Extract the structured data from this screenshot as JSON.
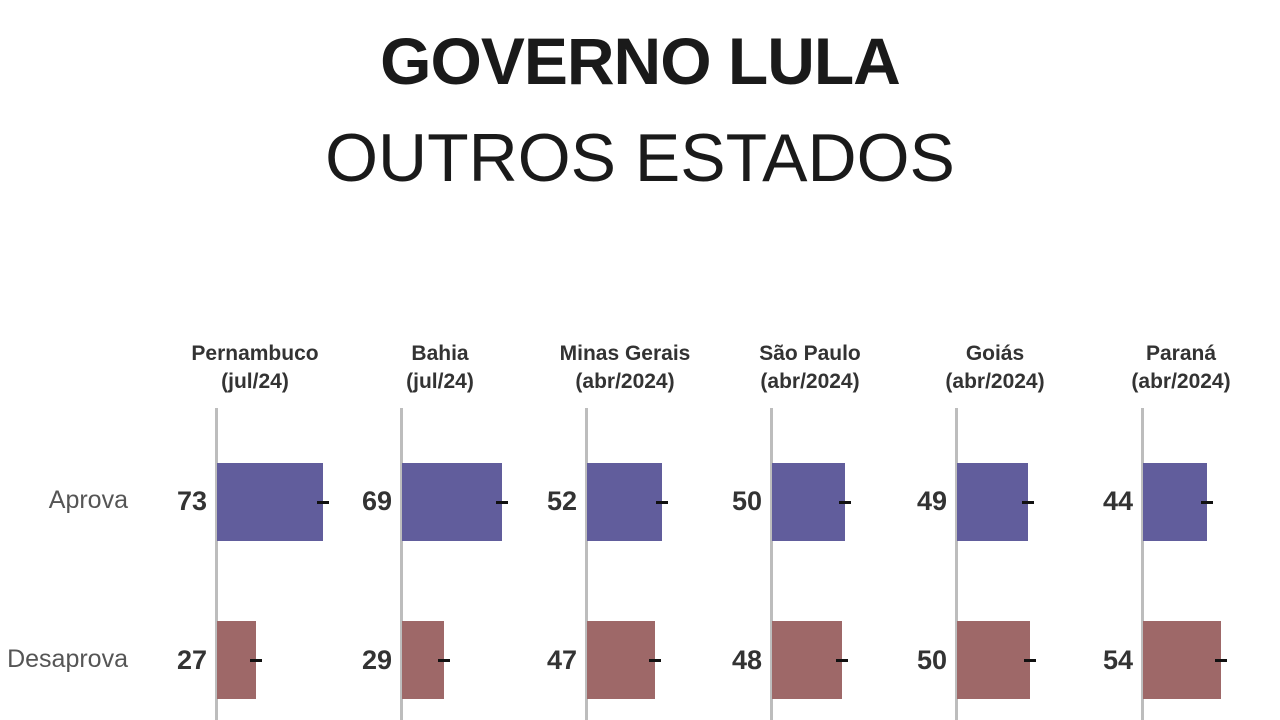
{
  "title": "GOVERNO LULA",
  "subtitle": "OUTROS ESTADOS",
  "chart_data": {
    "type": "bar",
    "orientation": "horizontal",
    "rows": [
      "Aprova",
      "Desaprova"
    ],
    "colors": {
      "Aprova": "#615d9c",
      "Desaprova": "#9e6868"
    },
    "panels": [
      {
        "state": "Pernambuco",
        "date": "(jul/24)",
        "values": {
          "Aprova": 73,
          "Desaprova": 27
        }
      },
      {
        "state": "Bahia",
        "date": "(jul/24)",
        "values": {
          "Aprova": 69,
          "Desaprova": 29
        }
      },
      {
        "state": "Minas Gerais",
        "date": "(abr/2024)",
        "values": {
          "Aprova": 52,
          "Desaprova": 47
        }
      },
      {
        "state": "São Paulo",
        "date": "(abr/2024)",
        "values": {
          "Aprova": 50,
          "Desaprova": 48
        }
      },
      {
        "state": "Goiás",
        "date": "(abr/2024)",
        "values": {
          "Aprova": 49,
          "Desaprova": 50
        }
      },
      {
        "state": "Paraná",
        "date": "(abr/2024)",
        "values": {
          "Aprova": 44,
          "Desaprova": 54
        }
      }
    ],
    "xlim": [
      0,
      100
    ],
    "error_bars": true
  }
}
